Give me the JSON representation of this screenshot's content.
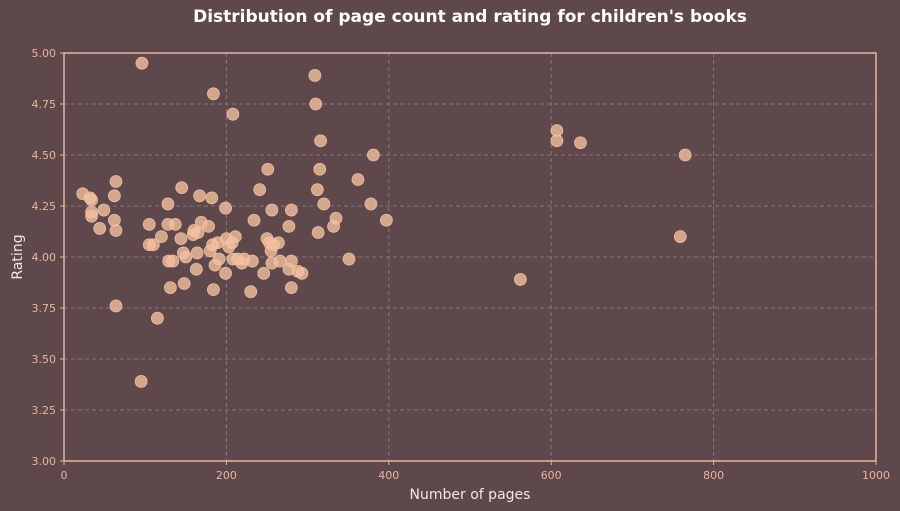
{
  "chart_data": {
    "type": "scatter",
    "title": "Distribution of page count and rating for children's books",
    "xlabel": "Number of pages",
    "ylabel": "Rating",
    "xlim": [
      0,
      1000
    ],
    "ylim": [
      3.0,
      5.0
    ],
    "xticks": [
      0,
      200,
      400,
      600,
      800,
      1000
    ],
    "xtick_labels": [
      "0",
      "200",
      "400",
      "600",
      "800",
      "1000"
    ],
    "yticks": [
      3.0,
      3.25,
      3.5,
      3.75,
      4.0,
      4.25,
      4.5,
      4.75,
      5.0
    ],
    "ytick_labels": [
      "3.00",
      "3.25",
      "3.50",
      "3.75",
      "4.00",
      "4.25",
      "4.50",
      "4.75",
      "5.00"
    ],
    "grid": true,
    "colors": {
      "background": "#5e484c",
      "point": "#f5c0a2",
      "axis": "#e8b59c"
    },
    "points": [
      {
        "x": 96,
        "y": 4.95
      },
      {
        "x": 184,
        "y": 4.8
      },
      {
        "x": 208,
        "y": 4.7
      },
      {
        "x": 309,
        "y": 4.89
      },
      {
        "x": 310,
        "y": 4.75
      },
      {
        "x": 316,
        "y": 4.57
      },
      {
        "x": 381,
        "y": 4.5
      },
      {
        "x": 315,
        "y": 4.43
      },
      {
        "x": 251,
        "y": 4.43
      },
      {
        "x": 362,
        "y": 4.38
      },
      {
        "x": 312,
        "y": 4.33
      },
      {
        "x": 241,
        "y": 4.33
      },
      {
        "x": 320,
        "y": 4.26
      },
      {
        "x": 378,
        "y": 4.26
      },
      {
        "x": 280,
        "y": 4.23
      },
      {
        "x": 256,
        "y": 4.23
      },
      {
        "x": 335,
        "y": 4.19
      },
      {
        "x": 397,
        "y": 4.18
      },
      {
        "x": 234,
        "y": 4.18
      },
      {
        "x": 277,
        "y": 4.15
      },
      {
        "x": 332,
        "y": 4.15
      },
      {
        "x": 313,
        "y": 4.12
      },
      {
        "x": 351,
        "y": 3.99
      },
      {
        "x": 23,
        "y": 4.31
      },
      {
        "x": 32,
        "y": 4.29
      },
      {
        "x": 34,
        "y": 4.28
      },
      {
        "x": 34,
        "y": 4.22
      },
      {
        "x": 34,
        "y": 4.2
      },
      {
        "x": 49,
        "y": 4.23
      },
      {
        "x": 64,
        "y": 4.37
      },
      {
        "x": 62,
        "y": 4.3
      },
      {
        "x": 62,
        "y": 4.18
      },
      {
        "x": 64,
        "y": 4.13
      },
      {
        "x": 44,
        "y": 4.14
      },
      {
        "x": 64,
        "y": 3.76
      },
      {
        "x": 105,
        "y": 4.16
      },
      {
        "x": 105,
        "y": 4.06
      },
      {
        "x": 110,
        "y": 4.06
      },
      {
        "x": 120,
        "y": 4.1
      },
      {
        "x": 128,
        "y": 4.26
      },
      {
        "x": 145,
        "y": 4.34
      },
      {
        "x": 128,
        "y": 4.16
      },
      {
        "x": 137,
        "y": 4.16
      },
      {
        "x": 144,
        "y": 4.09
      },
      {
        "x": 129,
        "y": 3.98
      },
      {
        "x": 134,
        "y": 3.98
      },
      {
        "x": 147,
        "y": 4.02
      },
      {
        "x": 150,
        "y": 4.0
      },
      {
        "x": 131,
        "y": 3.85
      },
      {
        "x": 148,
        "y": 3.87
      },
      {
        "x": 115,
        "y": 3.7
      },
      {
        "x": 95,
        "y": 3.39
      },
      {
        "x": 167,
        "y": 4.3
      },
      {
        "x": 182,
        "y": 4.29
      },
      {
        "x": 199,
        "y": 4.24
      },
      {
        "x": 169,
        "y": 4.17
      },
      {
        "x": 178,
        "y": 4.15
      },
      {
        "x": 160,
        "y": 4.13
      },
      {
        "x": 165,
        "y": 4.12
      },
      {
        "x": 159,
        "y": 4.11
      },
      {
        "x": 183,
        "y": 4.06
      },
      {
        "x": 189,
        "y": 4.07
      },
      {
        "x": 180,
        "y": 4.03
      },
      {
        "x": 164,
        "y": 4.02
      },
      {
        "x": 163,
        "y": 3.94
      },
      {
        "x": 186,
        "y": 3.96
      },
      {
        "x": 191,
        "y": 3.99
      },
      {
        "x": 200,
        "y": 4.09
      },
      {
        "x": 207,
        "y": 4.07
      },
      {
        "x": 211,
        "y": 4.1
      },
      {
        "x": 203,
        "y": 4.05
      },
      {
        "x": 208,
        "y": 3.99
      },
      {
        "x": 214,
        "y": 3.99
      },
      {
        "x": 222,
        "y": 3.99
      },
      {
        "x": 219,
        "y": 3.97
      },
      {
        "x": 232,
        "y": 3.98
      },
      {
        "x": 199,
        "y": 3.92
      },
      {
        "x": 184,
        "y": 3.84
      },
      {
        "x": 230,
        "y": 3.83
      },
      {
        "x": 250,
        "y": 4.09
      },
      {
        "x": 253,
        "y": 4.07
      },
      {
        "x": 258,
        "y": 4.06
      },
      {
        "x": 264,
        "y": 4.07
      },
      {
        "x": 255,
        "y": 4.03
      },
      {
        "x": 246,
        "y": 3.92
      },
      {
        "x": 256,
        "y": 3.97
      },
      {
        "x": 266,
        "y": 3.98
      },
      {
        "x": 280,
        "y": 3.98
      },
      {
        "x": 277,
        "y": 3.94
      },
      {
        "x": 288,
        "y": 3.93
      },
      {
        "x": 293,
        "y": 3.92
      },
      {
        "x": 280,
        "y": 3.85
      },
      {
        "x": 607,
        "y": 4.62
      },
      {
        "x": 607,
        "y": 4.57
      },
      {
        "x": 636,
        "y": 4.56
      },
      {
        "x": 765,
        "y": 4.5
      },
      {
        "x": 759,
        "y": 4.1
      },
      {
        "x": 562,
        "y": 3.89
      }
    ]
  }
}
